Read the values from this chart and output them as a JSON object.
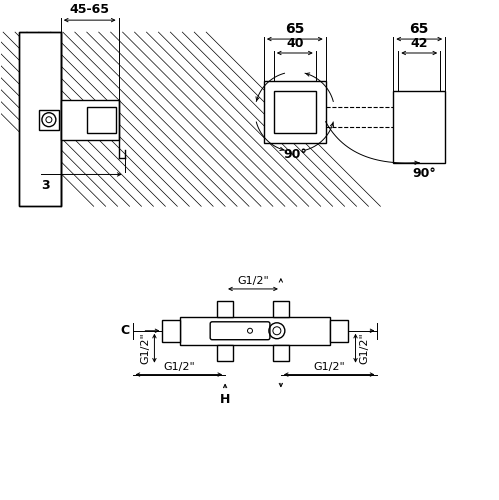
{
  "bg_color": "#ffffff",
  "line_color": "#000000",
  "annotations": {
    "dim_45_65": "45-65",
    "dim_3": "3",
    "dim_65_left": "65",
    "dim_65_right": "65",
    "dim_40": "40",
    "dim_42": "42",
    "angle_90_left": "90°",
    "angle_90_right": "90°",
    "g12_top_left": "G1/2\"",
    "g12_top_mid": "G1/2\"",
    "g12_top_right": "G1/2\"",
    "g12_bot_left": "G1/2\"",
    "g12_bot_right": "G1/2\"",
    "label_c": "C",
    "label_h": "H"
  }
}
